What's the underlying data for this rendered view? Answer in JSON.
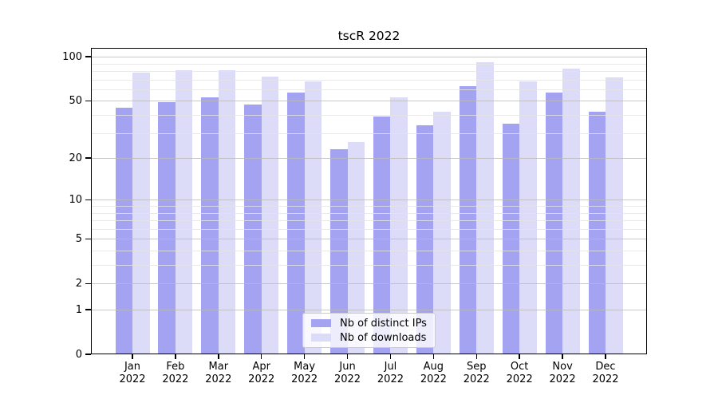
{
  "chart_data": {
    "type": "bar",
    "title": "tscR 2022",
    "categories": [
      "Jan",
      "Feb",
      "Mar",
      "Apr",
      "May",
      "Jun",
      "Jul",
      "Aug",
      "Sep",
      "Oct",
      "Nov",
      "Dec"
    ],
    "category_year": "2022",
    "series": [
      {
        "name": "Nb of distinct IPs",
        "color": "#a3a3f1",
        "values": [
          45,
          49,
          53,
          47,
          57,
          23,
          39,
          34,
          63,
          35,
          57,
          42
        ]
      },
      {
        "name": "Nb of downloads",
        "color": "#dcdcf8",
        "values": [
          78,
          81,
          81,
          73,
          68,
          26,
          53,
          42,
          92,
          68,
          83,
          72
        ]
      }
    ],
    "yscale": "log1p",
    "ylim": [
      0,
      115
    ],
    "yticks": [
      100,
      50,
      20,
      10,
      5,
      2,
      1,
      0
    ],
    "minor_yticks": [
      3,
      4,
      6,
      7,
      8,
      9,
      30,
      40,
      60,
      70,
      80,
      90
    ],
    "grid": "on",
    "legend_position": "lower center"
  },
  "style": {
    "grid_major_color": "rgba(186,186,186,0.8)",
    "grid_minor_color": "rgba(228,228,228,0.8)",
    "axis_color": "#000000",
    "background": "#ffffff"
  }
}
